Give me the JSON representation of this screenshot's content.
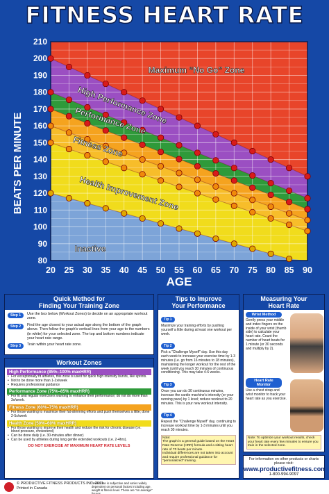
{
  "title": "FITNESS HEART RATE",
  "chart_data": {
    "type": "line",
    "xlabel": "AGE",
    "ylabel": "BEATS PER MINUTE",
    "x": [
      20,
      25,
      30,
      35,
      40,
      45,
      50,
      55,
      60,
      65,
      70,
      75,
      80,
      85,
      90
    ],
    "xlim": [
      20,
      90
    ],
    "ylim": [
      80,
      210
    ],
    "yticks": [
      80,
      90,
      100,
      110,
      120,
      130,
      140,
      150,
      160,
      170,
      180,
      190,
      200,
      210
    ],
    "grid": true,
    "series": [
      {
        "values": [
          200,
          195,
          190,
          185,
          180,
          175,
          170,
          165,
          160,
          155,
          150,
          145,
          140,
          135,
          130
        ]
      },
      {
        "values": [
          180,
          175.5,
          171,
          166.5,
          162,
          157.5,
          153,
          148.5,
          144,
          139.5,
          135,
          130.5,
          126,
          121.5,
          117
        ]
      },
      {
        "values": [
          170,
          165.75,
          161.5,
          157.25,
          153,
          148.75,
          144.5,
          140.25,
          136,
          131.75,
          127.5,
          123.25,
          119,
          114.75,
          110.5
        ]
      },
      {
        "values": [
          160,
          156,
          152,
          148,
          144,
          140,
          136,
          132,
          128,
          124,
          120,
          116,
          112,
          108,
          104
        ]
      },
      {
        "values": [
          150,
          146.25,
          142.5,
          138.75,
          135,
          131.25,
          127.5,
          123.75,
          120,
          116.25,
          112.5,
          108.75,
          105,
          101.25,
          97.5
        ]
      },
      {
        "values": [
          120,
          117,
          114,
          111,
          108,
          105,
          102,
          99,
          96,
          93,
          90,
          87,
          84,
          81,
          78
        ]
      }
    ],
    "zones": [
      "Maximum “No Go” Zone",
      "High Performance Zone",
      "Performance Zone",
      "Fitness Zone",
      "Health Improvement Zone",
      "Inactive"
    ],
    "zone_colors": [
      "#e8452a",
      "#9b4fc2",
      "#2f9a3a",
      "#f5a31f",
      "#f1dc1c",
      "#7da4d8"
    ]
  },
  "quick": {
    "title": "Quick Method for\nFinding Your Training Zone",
    "steps": [
      {
        "tag": "Step 1",
        "text": "Use the box below (Workout Zones) to decide on an appropriate workout zone."
      },
      {
        "tag": "Step 2",
        "text": "Find the age closest to your actual age along the bottom of the graph above. Then follow the graph's vertical lines from your age to the numbers (in white) for your selected zone. The top and bottom numbers indicate your heart rate range."
      },
      {
        "tag": "Step 3",
        "text": "Train within your heart rate zone."
      }
    ]
  },
  "workout": {
    "title": "Workout Zones",
    "zones": [
      {
        "label": "High Performance (85%–100% maxHRR)",
        "color": "#9b4fc2",
        "lines": [
          "For exceptionally fit athletes, this zone is used for quick high intensity bursts, like sprints.",
          "Not to be done more than 1-2x/week",
          "Requires professional guidance"
        ]
      },
      {
        "label": "Performance Zone (75%–85% maxHRR)",
        "color": "#2f9a3a",
        "lines": [
          "For fit and regular exercisers wanting to enhance their performance; do not do more than 3x/week."
        ]
      },
      {
        "label": "Fitness Zone (60%–75% maxHRR)",
        "color": "#f5a31f",
        "lines": [
          "For those wanting to maximize their fat-slimming efforts and push themselves a little; done 2-5x/week"
        ]
      },
      {
        "label": "Health Zone (50%–60% maxHRR)",
        "color": "#f1dc1c",
        "lines": [
          "For those wanting to improve their health and reduce the risk for chronic disease (i.e. blood pressure, cholesterol)",
          "Can be done daily (i.e. 30-minutes after dinner)",
          "Can be used by athletes during long gentle extended workouts (i.e. 2-4hrs)."
        ]
      }
    ],
    "warning": "DO NOT EXERCISE AT MAXIMUM HEART RATE LEVELS"
  },
  "tips": {
    "title": "Tips to Improve\nYour Performance",
    "items": [
      {
        "tag": "Tip 1",
        "text": "Maximize your training efforts by pushing yourself a little during at least one workout per week."
      },
      {
        "tag": "Tip 2",
        "text": "Pick a \"Challenge Myself\" day. Use this day each week to increase your exercise time by 1-3 minutes (i.e. go from 16 minutes to 18 minutes), maintaining the longer workout for the rest of the week (until you reach 30 minutes of continuous conditioning. This may take 4-6 weeks."
      },
      {
        "tag": "Tip 3",
        "text": "Once you can do 30 continuous minutes, increase the cardio machine's intensity (or your running pace) by 1 level; reduce workout to 20 minutes. This is your new workout intensity."
      },
      {
        "tag": "Tip 4",
        "text": "Repeat the \"Challenge Myself\" day, continuing to increase workout time by 1-3 minutes until you reach 30 minutes."
      }
    ],
    "note": "Note:\nThe graph is a general guide based on the Heart Rate Reserve (HRR) formula and a sitting heart rate of 70 beats per minute.\nIndividual differences are not taken into account and require professional guidance for \"personalized\" training."
  },
  "measuring": {
    "title": "Measuring Your\nHeart Rate",
    "wrist_tag": "Wrist Method",
    "wrist_text": "Gently press your middle and index fingers on the inside of your wrist (thumb side) to calculate your heart rate. Count the number of heart beats for 1 minute (or 30 seconds and multiply by 2).",
    "monitor_tag": "Heart Rate Monitor",
    "monitor_text": "Use a chest strap and wrist monitor to track your heart rate as you exercise.",
    "note": "Note: To optimize your workout results, check your heart rate every few minutes to ensure you train in the selected zone."
  },
  "footer": {
    "copyright": "© PRODUCTIVE FITNESS PRODUCTS INC. 2011\nPrinted in Canada",
    "disclaimer": "*Heart rate is subjective and varies widely dependent on personal factors including age, weight & fitness level. These are \"on average\" figures.",
    "contact_text": "For information on other products or charts please visit:",
    "url": "www.productivefitness.com",
    "phone": "1-800-994-9097"
  }
}
